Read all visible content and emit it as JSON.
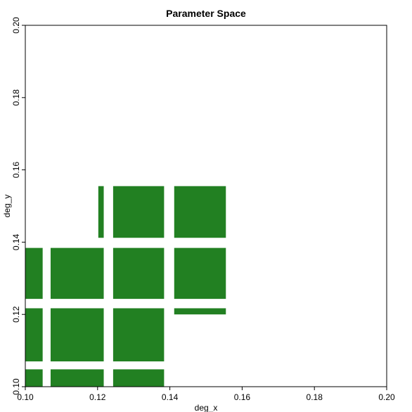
{
  "chart_data": {
    "type": "heatmap",
    "title": "Parameter Space",
    "xlabel": "deg_x",
    "ylabel": "deg_y",
    "xlim": [
      0.1,
      0.2
    ],
    "ylim": [
      0.1,
      0.2
    ],
    "xticks": [
      "0.10",
      "0.12",
      "0.14",
      "0.16",
      "0.18",
      "0.20"
    ],
    "yticks": [
      "0.10",
      "0.12",
      "0.14",
      "0.16",
      "0.18",
      "0.20"
    ],
    "grid": false,
    "fill_color": "#228022",
    "regions": [
      {
        "x": [
          0.1,
          0.1048
        ],
        "y": [
          0.1,
          0.1048
        ]
      },
      {
        "x": [
          0.107,
          0.1217
        ],
        "y": [
          0.1,
          0.1048
        ]
      },
      {
        "x": [
          0.1243,
          0.1384
        ],
        "y": [
          0.1,
          0.1048
        ]
      },
      {
        "x": [
          0.1,
          0.1048
        ],
        "y": [
          0.107,
          0.1217
        ]
      },
      {
        "x": [
          0.107,
          0.1217
        ],
        "y": [
          0.107,
          0.1217
        ]
      },
      {
        "x": [
          0.1243,
          0.1384
        ],
        "y": [
          0.107,
          0.1217
        ]
      },
      {
        "x": [
          0.1,
          0.1048
        ],
        "y": [
          0.1243,
          0.1384
        ]
      },
      {
        "x": [
          0.107,
          0.1217
        ],
        "y": [
          0.1243,
          0.1384
        ]
      },
      {
        "x": [
          0.1243,
          0.1384
        ],
        "y": [
          0.1243,
          0.1384
        ]
      },
      {
        "x": [
          0.1412,
          0.1555
        ],
        "y": [
          0.1243,
          0.1384
        ]
      },
      {
        "x": [
          0.1412,
          0.1555
        ],
        "y": [
          0.12,
          0.1217
        ]
      },
      {
        "x": [
          0.1202,
          0.1217
        ],
        "y": [
          0.1412,
          0.1555
        ]
      },
      {
        "x": [
          0.1243,
          0.1384
        ],
        "y": [
          0.1412,
          0.1555
        ]
      },
      {
        "x": [
          0.1412,
          0.1555
        ],
        "y": [
          0.1412,
          0.1555
        ]
      }
    ]
  }
}
